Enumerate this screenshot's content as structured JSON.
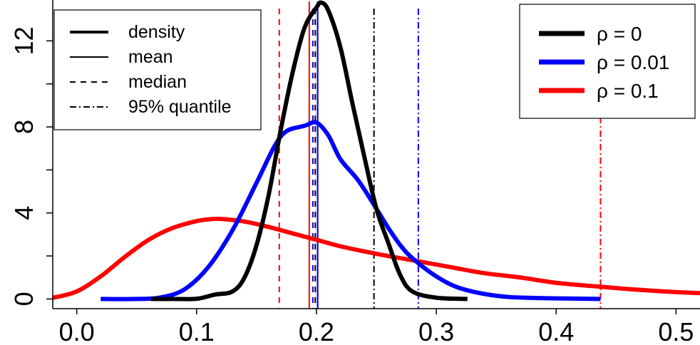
{
  "chart_data": {
    "type": "line",
    "title": "",
    "xlabel": "",
    "ylabel": "",
    "xlim": [
      -0.02,
      0.52
    ],
    "ylim": [
      -0.45,
      13.9
    ],
    "x_ticks": [
      0.0,
      0.1,
      0.2,
      0.3,
      0.4,
      0.5
    ],
    "x_tick_labels": [
      "0.0",
      "0.1",
      "0.2",
      "0.3",
      "0.4",
      "0.5"
    ],
    "y_ticks": [
      0,
      4,
      8,
      12
    ],
    "y_tick_labels": [
      "0",
      "4",
      "8",
      "12"
    ],
    "y_minor_ticks": [
      2,
      6,
      10
    ],
    "grid": false,
    "series": [
      {
        "name": "ρ = 0",
        "color": "#000000",
        "points": [
          [
            0.062,
            0
          ],
          [
            0.08,
            0
          ],
          [
            0.1,
            0.01
          ],
          [
            0.115,
            0.2
          ],
          [
            0.13,
            0.35
          ],
          [
            0.14,
            1.0
          ],
          [
            0.15,
            2.5
          ],
          [
            0.16,
            4.8
          ],
          [
            0.17,
            7.8
          ],
          [
            0.18,
            10.5
          ],
          [
            0.19,
            12.6
          ],
          [
            0.2,
            13.55
          ],
          [
            0.204,
            13.78
          ],
          [
            0.21,
            13.4
          ],
          [
            0.22,
            11.7
          ],
          [
            0.23,
            9.1
          ],
          [
            0.24,
            6.6
          ],
          [
            0.25,
            4.2
          ],
          [
            0.26,
            2.6
          ],
          [
            0.27,
            1.1
          ],
          [
            0.28,
            0.35
          ],
          [
            0.3,
            0.06
          ],
          [
            0.326,
            0
          ]
        ],
        "mean": 0.201,
        "median": 0.199,
        "q95": 0.248
      },
      {
        "name": "ρ = 0.01",
        "color": "#0000ff",
        "points": [
          [
            0.02,
            0
          ],
          [
            0.05,
            0
          ],
          [
            0.07,
            0.07
          ],
          [
            0.09,
            0.45
          ],
          [
            0.11,
            1.5
          ],
          [
            0.13,
            3.2
          ],
          [
            0.15,
            5.4
          ],
          [
            0.165,
            7.1
          ],
          [
            0.175,
            7.8
          ],
          [
            0.19,
            8.05
          ],
          [
            0.2,
            8.2
          ],
          [
            0.21,
            7.6
          ],
          [
            0.22,
            6.5
          ],
          [
            0.235,
            5.5
          ],
          [
            0.25,
            4.2
          ],
          [
            0.26,
            3.3
          ],
          [
            0.27,
            2.5
          ],
          [
            0.28,
            1.9
          ],
          [
            0.3,
            1.05
          ],
          [
            0.32,
            0.5
          ],
          [
            0.35,
            0.15
          ],
          [
            0.38,
            0.05
          ],
          [
            0.437,
            0
          ]
        ],
        "mean": 0.201,
        "median": 0.197,
        "q95": 0.285
      },
      {
        "name": "ρ = 0.1",
        "color": "#ff0000",
        "points": [
          [
            -0.02,
            0.05
          ],
          [
            0.0,
            0.35
          ],
          [
            0.02,
            1.05
          ],
          [
            0.04,
            1.95
          ],
          [
            0.06,
            2.75
          ],
          [
            0.08,
            3.3
          ],
          [
            0.1,
            3.62
          ],
          [
            0.11,
            3.7
          ],
          [
            0.12,
            3.72
          ],
          [
            0.14,
            3.6
          ],
          [
            0.16,
            3.35
          ],
          [
            0.18,
            3.05
          ],
          [
            0.2,
            2.75
          ],
          [
            0.22,
            2.45
          ],
          [
            0.25,
            2.1
          ],
          [
            0.28,
            1.8
          ],
          [
            0.31,
            1.5
          ],
          [
            0.34,
            1.2
          ],
          [
            0.37,
            1.0
          ],
          [
            0.4,
            0.75
          ],
          [
            0.43,
            0.6
          ],
          [
            0.46,
            0.46
          ],
          [
            0.49,
            0.35
          ],
          [
            0.52,
            0.27
          ]
        ],
        "mean": 0.194,
        "median": 0.169,
        "q95": 0.437
      }
    ],
    "line_type_legend": {
      "placement": "top-left",
      "items": [
        {
          "label": "density",
          "style": "thick"
        },
        {
          "label": "mean",
          "style": "solid"
        },
        {
          "label": "median",
          "style": "dashed"
        },
        {
          "label": "95% quantile",
          "style": "dotdash"
        }
      ]
    },
    "series_legend": {
      "placement": "top-right",
      "items": [
        "ρ = 0",
        "ρ = 0.01",
        "ρ = 0.1"
      ]
    }
  }
}
